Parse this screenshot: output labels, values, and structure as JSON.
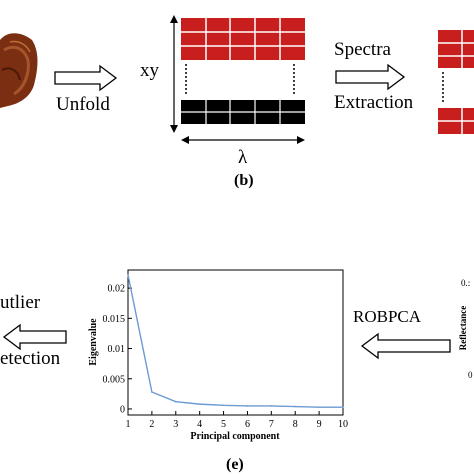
{
  "top": {
    "unfold_label": "Unfold",
    "xy_label": "xy",
    "lambda_label": "λ",
    "panel_label": "(b)",
    "spectra_label": "Spectra",
    "extraction_label": "Extraction"
  },
  "bottom": {
    "outlier_fragment": "utlier",
    "detection_fragment": "etection",
    "robpca_label": "ROBPCA",
    "panel_label": "(e)",
    "reflectance_label": "Reflectance",
    "reflectance_tick": "0.:",
    "reflectance_tick2": "0"
  },
  "chart_data": {
    "type": "line",
    "xlabel": "Principal component",
    "ylabel": "Eigenvalue",
    "x": [
      1,
      2,
      3,
      4,
      5,
      6,
      7,
      8,
      9,
      10
    ],
    "series": [
      {
        "values": [
          0.0222,
          0.0028,
          0.0012,
          0.0008,
          0.0006,
          0.0005,
          0.0005,
          0.0004,
          0.0003,
          0.0003
        ]
      }
    ],
    "xlim": [
      1,
      10
    ],
    "ylim": [
      -0.001,
      0.023
    ],
    "xticks": [
      "1",
      "2",
      "3",
      "4",
      "5",
      "6",
      "7",
      "8",
      "9",
      "10"
    ],
    "yticks": [
      "0",
      "0.005",
      "0.01",
      "0.015",
      "0.02"
    ],
    "ytick_values": [
      0,
      0.005,
      0.01,
      0.015,
      0.02
    ],
    "line_color": "#6b9bd2",
    "grid": false
  },
  "colors": {
    "red_block": "#c81e1e",
    "black_block": "#000000",
    "meat": "#7a2e12"
  }
}
